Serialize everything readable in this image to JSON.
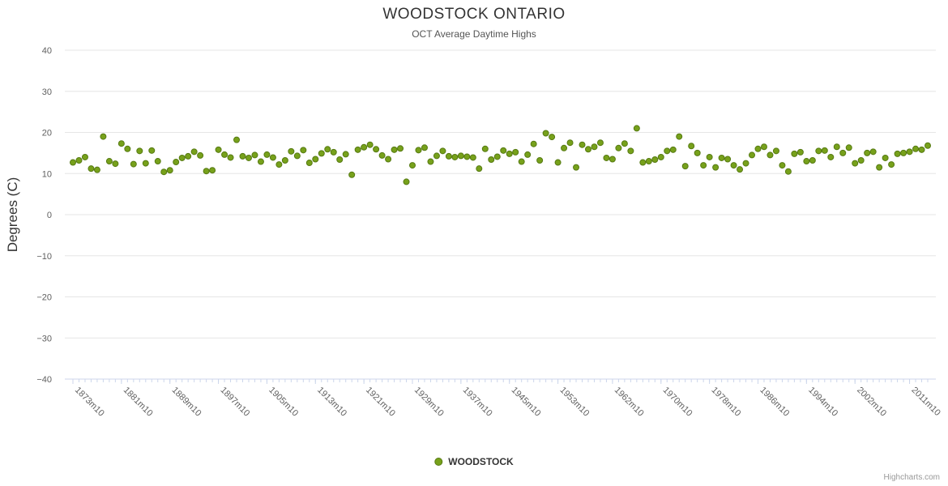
{
  "header": {
    "title": "WOODSTOCK ONTARIO",
    "subtitle": "OCT Average Daytime Highs"
  },
  "legend": {
    "label": "WOODSTOCK"
  },
  "credits": {
    "label": "Highcharts.com"
  },
  "colors": {
    "point": "#77a11b",
    "point_border": "#567a12",
    "grid": "#e6e6e6",
    "axis": "#ccd6eb",
    "tick": "#ccd6eb",
    "label_text": "#606060",
    "title_text": "#333333"
  },
  "chart_data": {
    "type": "scatter",
    "title": "WOODSTOCK ONTARIO",
    "subtitle": "OCT Average Daytime Highs",
    "xlabel": "",
    "ylabel": "Degrees (C)",
    "ylim": [
      -40,
      40
    ],
    "y_tick_step": 10,
    "y_tick_labels": [
      "40",
      "30",
      "20",
      "10",
      "0",
      "-10",
      "-20",
      "-30",
      "-40"
    ],
    "grid": "horizontal",
    "legend_position": "bottom-center",
    "x_start_year": 1873,
    "x_suffix": "m10",
    "x_tick_labels": [
      "1873m10",
      "1881m10",
      "1889m10",
      "1897m10",
      "1905m10",
      "1913m10",
      "1921m10",
      "1929m10",
      "1937m10",
      "1945m10",
      "1953m10",
      "1962m10",
      "1970m10",
      "1978m10",
      "1986m10",
      "1994m10",
      "2002m10",
      "2011m10"
    ],
    "series": [
      {
        "name": "WOODSTOCK",
        "values": [
          12.7,
          13.2,
          14,
          11.2,
          10.9,
          19,
          13,
          12.4,
          17.3,
          16,
          12.3,
          15.5,
          12.5,
          15.6,
          13,
          10.4,
          10.8,
          12.8,
          13.8,
          14.2,
          15.3,
          14.4,
          10.6,
          10.8,
          15.8,
          14.6,
          13.9,
          18.2,
          14.2,
          13.8,
          14.5,
          12.9,
          14.6,
          13.9,
          12.2,
          13.2,
          15.4,
          14.3,
          15.7,
          12.6,
          13.5,
          14.9,
          15.9,
          15.2,
          13.4,
          14.7,
          9.7,
          15.8,
          16.4,
          17,
          15.9,
          14.4,
          13.5,
          15.8,
          16.1,
          8,
          12,
          15.7,
          16.3,
          12.9,
          14.3,
          15.5,
          14.2,
          14,
          14.3,
          14.1,
          13.9,
          11.2,
          16,
          13.4,
          14.1,
          15.6,
          14.8,
          15.2,
          12.9,
          14.6,
          17.2,
          13.2,
          19.8,
          18.9,
          12.7,
          16.2,
          17.5,
          11.5,
          17,
          15.9,
          16.5,
          17.5,
          13.8,
          13.5,
          16.2,
          17.3,
          15.5,
          21,
          12.7,
          13,
          13.4,
          14,
          15.5,
          15.8,
          19,
          11.8,
          16.7,
          15,
          12,
          14,
          11.5,
          13.8,
          13.5,
          12,
          11,
          12.5,
          14.5,
          16,
          16.5,
          14.5,
          15.5,
          12,
          10.5,
          14.8,
          15.2,
          13,
          13.2,
          15.5,
          15.6,
          14,
          16.5,
          15,
          16.3,
          12.5,
          13.2,
          15,
          15.3,
          11.5,
          13.8,
          12.2,
          14.8,
          15,
          15.3,
          16,
          15.8,
          16.8
        ]
      }
    ]
  }
}
